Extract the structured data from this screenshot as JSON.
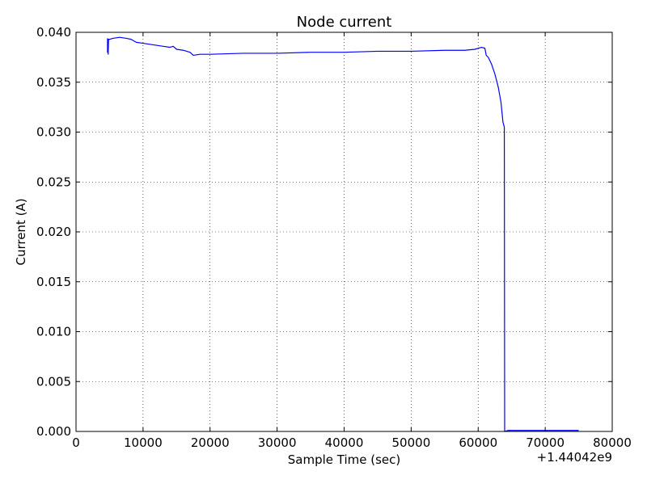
{
  "chart_data": {
    "type": "line",
    "title": "Node current",
    "xlabel": "Sample Time (sec)",
    "ylabel": "Current (A)",
    "x_offset_label": "+1.44042e9",
    "xlim": [
      0,
      80000
    ],
    "ylim": [
      0.0,
      0.04
    ],
    "x_ticks": [
      0,
      10000,
      20000,
      30000,
      40000,
      50000,
      60000,
      70000,
      80000
    ],
    "x_tick_labels": [
      "0",
      "10000",
      "20000",
      "30000",
      "40000",
      "50000",
      "60000",
      "70000",
      "80000"
    ],
    "y_ticks": [
      0.0,
      0.005,
      0.01,
      0.015,
      0.02,
      0.025,
      0.03,
      0.035,
      0.04
    ],
    "y_tick_labels": [
      "0.000",
      "0.005",
      "0.010",
      "0.015",
      "0.020",
      "0.025",
      "0.030",
      "0.035",
      "0.040"
    ],
    "grid": true,
    "series": [
      {
        "color": "#0000ff",
        "points": [
          [
            4700,
            0.0394
          ],
          [
            4700,
            0.038
          ],
          [
            4750,
            0.0393
          ],
          [
            4800,
            0.0378
          ],
          [
            4850,
            0.0393
          ],
          [
            5000,
            0.0393
          ],
          [
            5500,
            0.0394
          ],
          [
            6500,
            0.0395
          ],
          [
            7500,
            0.0394
          ],
          [
            8200,
            0.0393
          ],
          [
            9000,
            0.039
          ],
          [
            10000,
            0.0389
          ],
          [
            11000,
            0.0388
          ],
          [
            12000,
            0.0387
          ],
          [
            13000,
            0.0386
          ],
          [
            14000,
            0.0385
          ],
          [
            14500,
            0.0386
          ],
          [
            15000,
            0.0383
          ],
          [
            16000,
            0.0382
          ],
          [
            17000,
            0.038
          ],
          [
            17500,
            0.0377
          ],
          [
            18500,
            0.0378
          ],
          [
            20000,
            0.0378
          ],
          [
            25000,
            0.0379
          ],
          [
            30000,
            0.0379
          ],
          [
            35000,
            0.038
          ],
          [
            40000,
            0.038
          ],
          [
            45000,
            0.0381
          ],
          [
            50000,
            0.0381
          ],
          [
            55000,
            0.0382
          ],
          [
            58000,
            0.0382
          ],
          [
            59500,
            0.0383
          ],
          [
            60500,
            0.0385
          ],
          [
            61000,
            0.0384
          ],
          [
            61200,
            0.0377
          ],
          [
            61500,
            0.0375
          ],
          [
            62000,
            0.0368
          ],
          [
            62500,
            0.0358
          ],
          [
            63000,
            0.0345
          ],
          [
            63400,
            0.033
          ],
          [
            63700,
            0.031
          ],
          [
            63900,
            0.0305
          ],
          [
            63950,
            0.0
          ],
          [
            64500,
            0.0001
          ],
          [
            70000,
            0.0001
          ],
          [
            75000,
            0.0001
          ]
        ]
      }
    ]
  }
}
